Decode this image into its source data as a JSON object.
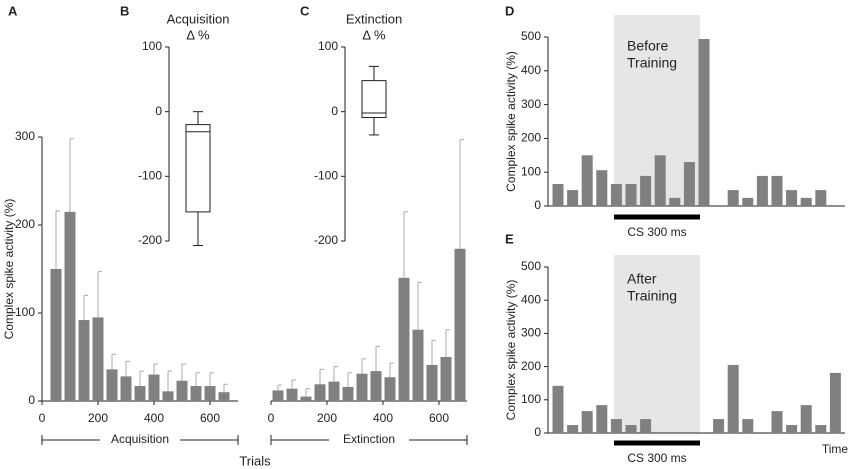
{
  "chart_data": [
    {
      "type": "bar",
      "label": "A",
      "ylabel": "Complex spike activity (%)",
      "xlabel": "Trials",
      "ylim": [
        0,
        300
      ],
      "yticks": [
        0,
        100,
        200,
        300
      ],
      "xlim": [
        0,
        700
      ],
      "xticks": [
        0,
        200,
        400,
        600
      ],
      "color": "#808080",
      "groups": [
        {
          "name": "Acquisition",
          "x": [
            50,
            100,
            150,
            200,
            250,
            300,
            350,
            400,
            450,
            500,
            550,
            600,
            650
          ],
          "values": [
            150,
            215,
            92,
            95,
            36,
            28,
            17,
            30,
            11,
            23,
            17,
            17,
            10
          ],
          "errors": [
            66,
            83,
            28,
            52,
            17,
            17,
            17,
            12,
            23,
            19,
            15,
            15,
            9
          ]
        },
        {
          "name": "Extinction",
          "x": [
            25,
            75,
            125,
            175,
            225,
            275,
            325,
            375,
            425,
            475,
            525,
            575,
            625,
            675
          ],
          "values": [
            12,
            14,
            5,
            19,
            22,
            16,
            31,
            34,
            27,
            140,
            81,
            41,
            50,
            173
          ],
          "errors": [
            6,
            10,
            9,
            17,
            17,
            16,
            17,
            28,
            16,
            75,
            54,
            28,
            31,
            124
          ]
        }
      ]
    },
    {
      "type": "box",
      "label": "B",
      "title": [
        "Acquisition",
        "Δ %"
      ],
      "ylim": [
        -200,
        100
      ],
      "yticks": [
        -200,
        -100,
        0,
        100
      ],
      "whislo": -207,
      "q1": -155,
      "med": -31,
      "q3": -20,
      "whishi": 0
    },
    {
      "type": "box",
      "label": "C",
      "title": [
        "Extinction",
        "Δ %"
      ],
      "ylim": [
        -200,
        100
      ],
      "yticks": [
        -200,
        -100,
        0,
        100
      ],
      "whislo": -36,
      "q1": -9,
      "med": -2,
      "q3": 48,
      "whishi": 70
    },
    {
      "type": "hist",
      "label": "D",
      "ylabel": "Complex spike activity (%)",
      "ylim": [
        0,
        500
      ],
      "yticks": [
        0,
        100,
        200,
        300,
        400,
        500
      ],
      "annotation": [
        "Before",
        "Training"
      ],
      "cs_label": "CS 300 ms",
      "color": "#808080",
      "values": [
        65,
        47,
        150,
        106,
        65,
        65,
        89,
        150,
        24,
        130,
        494,
        null,
        47,
        24,
        89,
        89,
        47,
        24,
        47,
        null
      ]
    },
    {
      "type": "hist",
      "label": "E",
      "ylabel": "Complex spike activity (%)",
      "ylim": [
        0,
        500
      ],
      "yticks": [
        0,
        100,
        200,
        300,
        400,
        500
      ],
      "annotation": [
        "After",
        "Training"
      ],
      "cs_label": "CS 300 ms",
      "xlabel": "Time",
      "color": "#808080",
      "values": [
        142,
        24,
        66,
        84,
        42,
        24,
        42,
        null,
        null,
        null,
        null,
        42,
        205,
        42,
        null,
        66,
        24,
        84,
        24,
        181
      ]
    }
  ]
}
